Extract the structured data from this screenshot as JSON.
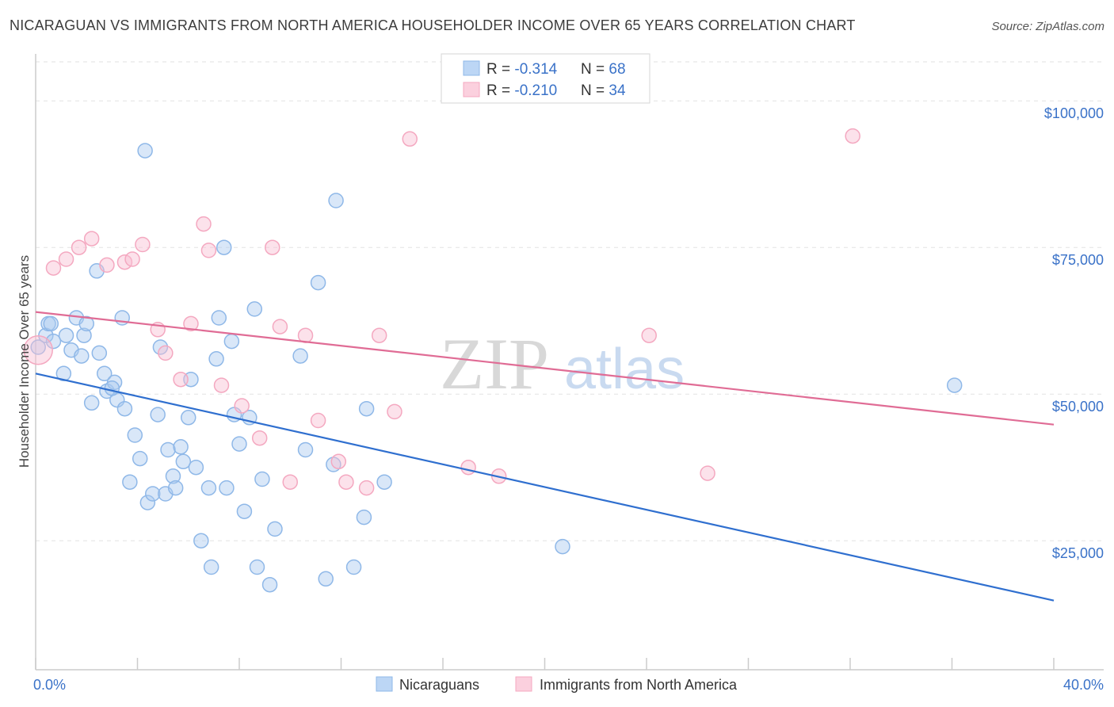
{
  "title": "NICARAGUAN VS IMMIGRANTS FROM NORTH AMERICA HOUSEHOLDER INCOME OVER 65 YEARS CORRELATION CHART",
  "source": "Source: ZipAtlas.com",
  "watermark": {
    "zip": "ZIP",
    "atlas": "atlas"
  },
  "chart_data": {
    "type": "scatter",
    "xlabel": "",
    "ylabel": "Householder Income Over 65 years",
    "xlim": [
      0,
      40
    ],
    "ylim": [
      3000,
      108000
    ],
    "x_tick_labels": {
      "min": "0.0%",
      "max": "40.0%"
    },
    "y_ticks": [
      {
        "value": 25000,
        "label": "$25,000"
      },
      {
        "value": 50000,
        "label": "$50,000"
      },
      {
        "value": 75000,
        "label": "$75,000"
      },
      {
        "value": 100000,
        "label": "$100,000"
      }
    ],
    "legend": [
      {
        "r_label": "R = ",
        "r": "-0.314",
        "n_label": "N = ",
        "n": "68"
      },
      {
        "r_label": "R = ",
        "r": "-0.210",
        "n_label": "N = ",
        "n": "34"
      }
    ],
    "series": [
      {
        "name": "Nicaraguans",
        "color": "#8fb8e8",
        "line_color": "#2f6fcf",
        "trend": {
          "x": [
            0,
            40
          ],
          "y": [
            53500,
            14800
          ]
        },
        "points": [
          [
            0.1,
            58000
          ],
          [
            0.4,
            60000
          ],
          [
            0.5,
            62000
          ],
          [
            0.7,
            59000
          ],
          [
            0.6,
            62000
          ],
          [
            1.1,
            53500
          ],
          [
            1.2,
            60000
          ],
          [
            1.4,
            57500
          ],
          [
            1.6,
            63000
          ],
          [
            1.8,
            56500
          ],
          [
            1.9,
            60000
          ],
          [
            2.0,
            62000
          ],
          [
            2.2,
            48500
          ],
          [
            2.4,
            71000
          ],
          [
            2.5,
            57000
          ],
          [
            2.7,
            53500
          ],
          [
            2.8,
            50500
          ],
          [
            3.1,
            52000
          ],
          [
            3.2,
            49000
          ],
          [
            3.4,
            63000
          ],
          [
            3.5,
            47500
          ],
          [
            3.7,
            35000
          ],
          [
            3.9,
            43000
          ],
          [
            4.1,
            39000
          ],
          [
            4.3,
            91500
          ],
          [
            4.4,
            31500
          ],
          [
            4.6,
            33000
          ],
          [
            4.8,
            46500
          ],
          [
            4.9,
            58000
          ],
          [
            5.1,
            33000
          ],
          [
            5.2,
            40500
          ],
          [
            5.4,
            36000
          ],
          [
            5.5,
            34000
          ],
          [
            5.7,
            41000
          ],
          [
            5.8,
            38500
          ],
          [
            6.0,
            46000
          ],
          [
            6.1,
            52500
          ],
          [
            6.3,
            37500
          ],
          [
            6.5,
            25000
          ],
          [
            6.8,
            34000
          ],
          [
            6.9,
            20500
          ],
          [
            7.1,
            56000
          ],
          [
            7.2,
            63000
          ],
          [
            7.4,
            75000
          ],
          [
            7.5,
            34000
          ],
          [
            7.7,
            59000
          ],
          [
            7.8,
            46500
          ],
          [
            8.0,
            41500
          ],
          [
            8.2,
            30000
          ],
          [
            8.4,
            46000
          ],
          [
            8.6,
            64500
          ],
          [
            8.7,
            20500
          ],
          [
            8.9,
            35500
          ],
          [
            9.2,
            17500
          ],
          [
            9.4,
            27000
          ],
          [
            10.4,
            56500
          ],
          [
            10.6,
            40500
          ],
          [
            11.1,
            69000
          ],
          [
            11.4,
            18500
          ],
          [
            11.7,
            38000
          ],
          [
            11.8,
            83000
          ],
          [
            12.5,
            20500
          ],
          [
            12.9,
            29000
          ],
          [
            13.0,
            47500
          ],
          [
            13.7,
            35000
          ],
          [
            20.7,
            24000
          ],
          [
            36.1,
            51500
          ],
          [
            3.0,
            51000
          ]
        ]
      },
      {
        "name": "Immigrants from North America",
        "color": "#f4a8c0",
        "line_color": "#e06c95",
        "trend": {
          "x": [
            0,
            40
          ],
          "y": [
            64000,
            44800
          ]
        },
        "points": [
          [
            0.1,
            57500
          ],
          [
            0.7,
            71500
          ],
          [
            1.2,
            73000
          ],
          [
            1.7,
            75000
          ],
          [
            2.2,
            76500
          ],
          [
            2.8,
            72000
          ],
          [
            3.5,
            72500
          ],
          [
            3.8,
            73000
          ],
          [
            4.2,
            75500
          ],
          [
            4.8,
            61000
          ],
          [
            5.1,
            57000
          ],
          [
            5.7,
            52500
          ],
          [
            6.1,
            62000
          ],
          [
            6.6,
            79000
          ],
          [
            6.8,
            74500
          ],
          [
            7.3,
            51500
          ],
          [
            8.1,
            48000
          ],
          [
            8.8,
            42500
          ],
          [
            9.3,
            75000
          ],
          [
            9.6,
            61500
          ],
          [
            10.0,
            35000
          ],
          [
            10.6,
            60000
          ],
          [
            11.1,
            45500
          ],
          [
            11.9,
            38500
          ],
          [
            12.2,
            35000
          ],
          [
            13.0,
            34000
          ],
          [
            13.5,
            60000
          ],
          [
            14.1,
            47000
          ],
          [
            14.7,
            93500
          ],
          [
            17.0,
            37500
          ],
          [
            18.2,
            36000
          ],
          [
            24.1,
            60000
          ],
          [
            26.4,
            36500
          ],
          [
            32.1,
            94000
          ]
        ]
      }
    ]
  }
}
